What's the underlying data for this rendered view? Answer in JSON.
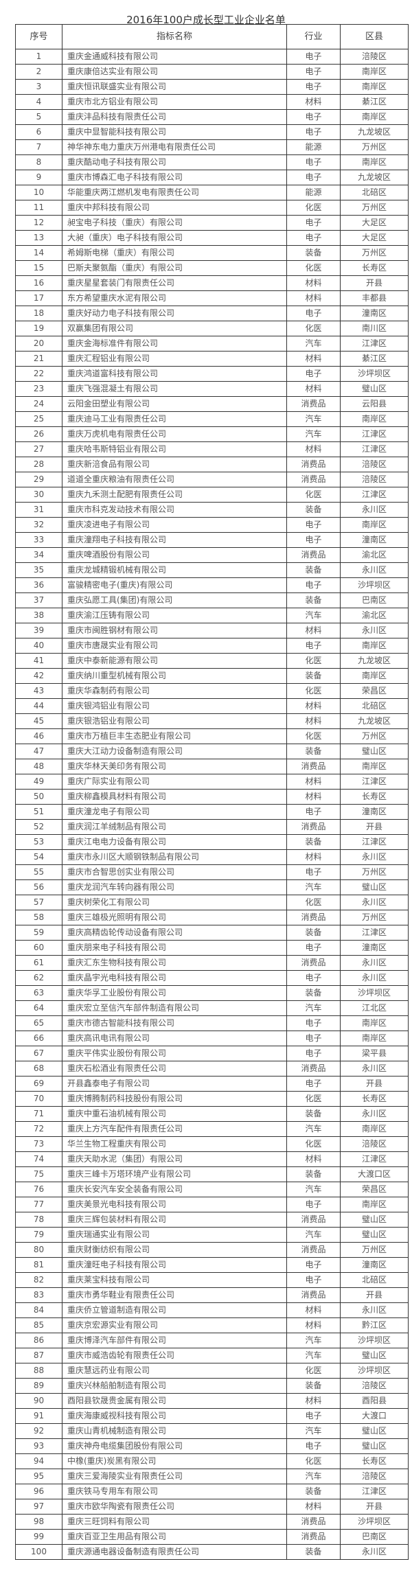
{
  "title": "2016年100户成长型工业企业名单",
  "headers": {
    "seq": "序号",
    "name": "指标名称",
    "industry": "行业",
    "district": "区县"
  },
  "rows": [
    [
      "1",
      "重庆金通威科技有限公司",
      "电子",
      "涪陵区"
    ],
    [
      "2",
      "重庆康倍达实业有限公司",
      "电子",
      "南岸区"
    ],
    [
      "3",
      "重庆恒讯联盛实业有限公司",
      "电子",
      "南岸区"
    ],
    [
      "4",
      "重庆市北方铝业有限公司",
      "材料",
      "綦江区"
    ],
    [
      "5",
      "重庆沣品科技有限责任公司",
      "电子",
      "南岸区"
    ],
    [
      "6",
      "重庆中显智能科技有限公司",
      "电子",
      "九龙坡区"
    ],
    [
      "7",
      "神华神东电力重庆万州港电有限责任公司",
      "能源",
      "万州区"
    ],
    [
      "8",
      "重庆酷动电子科技有限公司",
      "电子",
      "南岸区"
    ],
    [
      "9",
      "重庆市博森汇电子科技有限公司",
      "电子",
      "九龙坡区"
    ],
    [
      "10",
      "华能重庆两江燃机发电有限责任公司",
      "能源",
      "北碚区"
    ],
    [
      "11",
      "重庆中邦科技有限公司",
      "化医",
      "万州区"
    ],
    [
      "12",
      "昶宝电子科技（重庆）有限公司",
      "电子",
      "大足区"
    ],
    [
      "13",
      "大昶（重庆）电子科技有限公司",
      "电子",
      "大足区"
    ],
    [
      "14",
      "希姆斯电梯（重庆）有限公司",
      "装备",
      "万州区"
    ],
    [
      "15",
      "巴斯夫聚氨酯（重庆）有限公司",
      "化医",
      "长寿区"
    ],
    [
      "16",
      "重庆星星套装门有限责任公司",
      "材料",
      "开县"
    ],
    [
      "17",
      "东方希望重庆水泥有限公司",
      "材料",
      "丰都县"
    ],
    [
      "18",
      "重庆好动力电子科技有限公司",
      "电子",
      "潼南区"
    ],
    [
      "19",
      "双赢集团有限公司",
      "化医",
      "南川区"
    ],
    [
      "20",
      "重庆金海标准件有限公司",
      "汽车",
      "江津区"
    ],
    [
      "21",
      "重庆汇程铝业有限公司",
      "材料",
      "綦江区"
    ],
    [
      "22",
      "重庆鸿道富科技有限公司",
      "电子",
      "沙坪坝区"
    ],
    [
      "23",
      "重庆飞强混凝土有限公司",
      "材料",
      "璧山区"
    ],
    [
      "24",
      "云阳金田塑业有限公司",
      "消费品",
      "云阳县"
    ],
    [
      "25",
      "重庆迪马工业有限责任公司",
      "汽车",
      "南岸区"
    ],
    [
      "26",
      "重庆万虎机电有限责任公司",
      "汽车",
      "江津区"
    ],
    [
      "27",
      "重庆哈韦斯特铝业有限公司",
      "材料",
      "江津区"
    ],
    [
      "28",
      "重庆新涪食品有限公司",
      "消费品",
      "涪陵区"
    ],
    [
      "29",
      "道道全重庆粮油有限责任公司",
      "消费品",
      "涪陵区"
    ],
    [
      "30",
      "重庆九禾测土配肥有限责任公司",
      "化医",
      "江津区"
    ],
    [
      "31",
      "重庆市科克发动技术有限公司",
      "装备",
      "永川区"
    ],
    [
      "32",
      "重庆凌进电子有限公司",
      "电子",
      "南岸区"
    ],
    [
      "33",
      "重庆潼翔电子科技有限公司",
      "电子",
      "潼南区"
    ],
    [
      "34",
      "重庆啤酒股份有限公司",
      "消费品",
      "渝北区"
    ],
    [
      "35",
      "重庆龙城精锻机械有限公司",
      "装备",
      "永川区"
    ],
    [
      "36",
      "富骏精密电子(重庆)有限公司",
      "电子",
      "沙坪坝区"
    ],
    [
      "37",
      "重庆弘愿工具(集团)有限公司",
      "装备",
      "巴南区"
    ],
    [
      "38",
      "重庆渝江压铸有限公司",
      "汽车",
      "渝北区"
    ],
    [
      "39",
      "重庆市闽胜钢材有限公司",
      "材料",
      "永川区"
    ],
    [
      "40",
      "重庆市唐晟实业有限公司",
      "电子",
      "南岸区"
    ],
    [
      "41",
      "重庆中泰新能源有限公司",
      "化医",
      "九龙坡区"
    ],
    [
      "42",
      "重庆纳川重型机械有限公司",
      "装备",
      "南岸区"
    ],
    [
      "43",
      "重庆华森制药有限公司",
      "化医",
      "荣昌区"
    ],
    [
      "44",
      "重庆银鸿铝业有限公司",
      "材料",
      "北碚区"
    ],
    [
      "45",
      "重庆银浩铝业有限公司",
      "材料",
      "九龙坡区"
    ],
    [
      "46",
      "重庆市万植巨丰生态肥业有限公司",
      "化医",
      "万州区"
    ],
    [
      "47",
      "重庆大江动力设备制造有限公司",
      "装备",
      "璧山区"
    ],
    [
      "48",
      "重庆华林天美印务有限公司",
      "消费品",
      "南岸区"
    ],
    [
      "49",
      "重庆广际实业有限公司",
      "材料",
      "江津区"
    ],
    [
      "50",
      "重庆柳鑫模具材料有限公司",
      "材料",
      "长寿区"
    ],
    [
      "51",
      "重庆潼龙电子有限公司",
      "电子",
      "潼南区"
    ],
    [
      "52",
      "重庆润江羊绒制品有限公司",
      "消费品",
      "开县"
    ],
    [
      "53",
      "重庆江电电力设备有限公司",
      "装备",
      "江津区"
    ],
    [
      "54",
      "重庆市永川区大顺钢铁制品有限公司",
      "材料",
      "永川区"
    ],
    [
      "55",
      "重庆市合智思创实业有限公司",
      "电子",
      "万州区"
    ],
    [
      "56",
      "重庆龙润汽车转向器有限公司",
      "汽车",
      "璧山区"
    ],
    [
      "57",
      "重庆树荣化工有限公司",
      "化医",
      "永川区"
    ],
    [
      "58",
      "重庆三雄极光照明有限公司",
      "消费品",
      "万州区"
    ],
    [
      "59",
      "重庆高精齿轮传动设备有限公司",
      "装备",
      "江津区"
    ],
    [
      "60",
      "重庆朋来电子科技有限公司",
      "电子",
      "潼南区"
    ],
    [
      "61",
      "重庆汇东生物科技有限公司",
      "消费品",
      "永川区"
    ],
    [
      "62",
      "重庆晶宇光电科技有限公司",
      "电子",
      "永川区"
    ],
    [
      "63",
      "重庆华孚工业股份有限公司",
      "装备",
      "沙坪坝区"
    ],
    [
      "64",
      "重庆宏立至信汽车部件制造有限公司",
      "汽车",
      "江北区"
    ],
    [
      "65",
      "重庆市德古智能科技有限公司",
      "电子",
      "南岸区"
    ],
    [
      "66",
      "重庆高讯电讯有限公司",
      "电子",
      "南岸区"
    ],
    [
      "67",
      "重庆平伟实业股份有限公司",
      "电子",
      "梁平县"
    ],
    [
      "68",
      "重庆石松酒业有限责任公司",
      "消费品",
      "永川区"
    ],
    [
      "69",
      "开县鑫泰电子有限公司",
      "电子",
      "开县"
    ],
    [
      "70",
      "重庆博腾制药科技股份有限公司",
      "化医",
      "长寿区"
    ],
    [
      "71",
      "重庆中重石油机械有限公司",
      "装备",
      "永川区"
    ],
    [
      "72",
      "重庆上方汽车配件有限责任公司",
      "汽车",
      "南岸区"
    ],
    [
      "73",
      "华兰生物工程重庆有限公司",
      "化医",
      "涪陵区"
    ],
    [
      "74",
      "重庆天助水泥（集团）有限公司",
      "材料",
      "江津区"
    ],
    [
      "75",
      "重庆三峰卡万塔环境产业有限公司",
      "装备",
      "大渡口区"
    ],
    [
      "76",
      "重庆长安汽车安全装备有限公司",
      "汽车",
      "荣昌区"
    ],
    [
      "77",
      "重庆美景光电科技有限公司",
      "电子",
      "南岸区"
    ],
    [
      "78",
      "重庆三辉包装材料有限公司",
      "消费品",
      "璧山区"
    ],
    [
      "79",
      "重庆瑞通实业有限公司",
      "汽车",
      "璧山区"
    ],
    [
      "80",
      "重庆财衡纺织有限公司",
      "消费品",
      "万州区"
    ],
    [
      "81",
      "重庆潼旺电子科技有限公司",
      "电子",
      "潼南区"
    ],
    [
      "82",
      "重庆莱宝科技有限公司",
      "电子",
      "北碚区"
    ],
    [
      "83",
      "重庆市勇华鞋业有限责任公司",
      "消费品",
      "开县"
    ],
    [
      "84",
      "重庆侨立管道制造有限公司",
      "材料",
      "永川区"
    ],
    [
      "85",
      "重庆京宏源实业有限公司",
      "材料",
      "黔江区"
    ],
    [
      "86",
      "重庆博泽汽车部件有限公司",
      "汽车",
      "沙坪坝区"
    ],
    [
      "87",
      "重庆市威浩齿轮有限责任公司",
      "汽车",
      "璧山区"
    ],
    [
      "88",
      "重庆慧远药业有限公司",
      "化医",
      "沙坪坝区"
    ],
    [
      "89",
      "重庆兴林船舶制造有限公司",
      "装备",
      "涪陵区"
    ],
    [
      "90",
      "酉阳县钦晟贵金属有限公司",
      "材料",
      "酉阳县"
    ],
    [
      "91",
      "重庆海康威视科技有限公司",
      "电子",
      "大渡口"
    ],
    [
      "92",
      "重庆山青机械制造有限公司",
      "汽车",
      "璧山区"
    ],
    [
      "93",
      "重庆神舟电缆集团股份有限公司",
      "电子",
      "璧山区"
    ],
    [
      "94",
      "中橡(重庆)炭黑有限公司",
      "化医",
      "长寿区"
    ],
    [
      "95",
      "重庆三爱海陵实业有限责任公司",
      "汽车",
      "涪陵区"
    ],
    [
      "96",
      "重庆铁马专用车有限公司",
      "装备",
      "江津区"
    ],
    [
      "97",
      "重庆市欧华陶瓷有限责任公司",
      "材料",
      "开县"
    ],
    [
      "98",
      "重庆三旺饲料有限公司",
      "消费品",
      "沙坪坝区"
    ],
    [
      "99",
      "重庆百亚卫生用品有限公司",
      "消费品",
      "巴南区"
    ],
    [
      "100",
      "重庆源通电器设备制造有限责任公司",
      "装备",
      "永川区"
    ]
  ]
}
